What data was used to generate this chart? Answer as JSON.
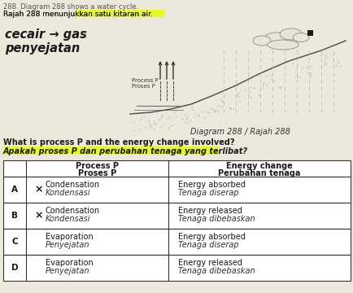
{
  "title_line1": "288. Diagram 288 shows a water cycle.",
  "title_line2": "Rajah 288 menunjukkan satu kitaran air.",
  "handwritten_line1": "cecair → gas",
  "handwritten_line2": "penyejatan",
  "diagram_label": "Diagram 288 / Rajah 288",
  "question_line1": "What is process P and the energy change involved?",
  "question_line2": "Apakah proses P dan perubahan tenaga yang terlibat?",
  "col_header1a": "Process P",
  "col_header1b": "Proses P",
  "col_header2a": "Energy change",
  "col_header2b": "Perubahan tenaga",
  "rows": [
    {
      "label": "A",
      "mark": "x",
      "process_en": "Condensation",
      "process_ms": "Kondensasi",
      "energy_en": "Energy absorbed",
      "energy_ms": "Tenaga diserap"
    },
    {
      "label": "B",
      "mark": "x",
      "process_en": "Condensation",
      "process_ms": "Kondensasi",
      "energy_en": "Energy released",
      "energy_ms": "Tenaga dibebaskan"
    },
    {
      "label": "C",
      "mark": "",
      "process_en": "Evaporation",
      "process_ms": "Penyejatan",
      "energy_en": "Energy absorbed",
      "energy_ms": "Tenaga diserap"
    },
    {
      "label": "D",
      "mark": "",
      "process_en": "Evaporation",
      "process_ms": "Penyejatan",
      "energy_en": "Energy released",
      "energy_ms": "Tenaga dibebaskan"
    }
  ],
  "bg_color": "#ede8dc",
  "highlight_yellow": "#e8ff00",
  "text_dark": "#1a1a1a",
  "text_mid": "#444444",
  "line_color": "#555555"
}
